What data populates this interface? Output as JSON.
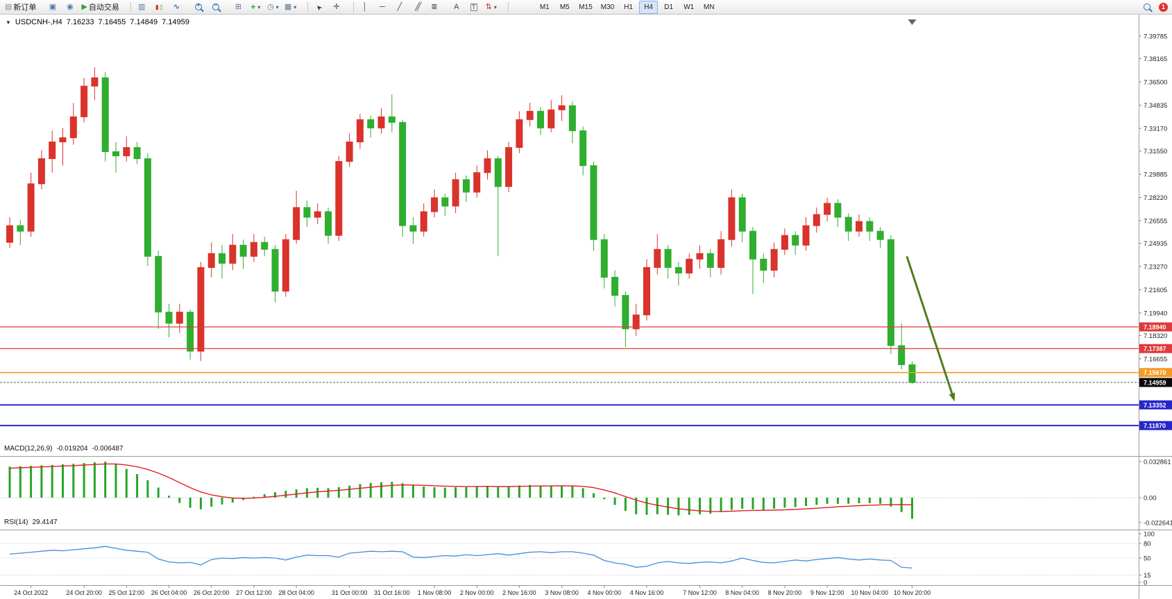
{
  "toolbar": {
    "new_order_label": "新订单",
    "autotrade_label": "自动交易",
    "timeframes": [
      "M1",
      "M5",
      "M15",
      "M30",
      "H1",
      "H4",
      "D1",
      "W1",
      "MN"
    ],
    "active_timeframe": "H4",
    "notification_count": "1"
  },
  "chart": {
    "title": {
      "symbol_period": "USDCNH-,H4",
      "open": "7.16233",
      "high": "7.16455",
      "low": "7.14849",
      "close": "7.14959"
    },
    "macd": {
      "label": "MACD(12,26,9)",
      "main_value": "-0.019204",
      "signal_value": "-0.006487"
    },
    "rsi": {
      "label": "RSI(14)",
      "value": "29.4147"
    }
  },
  "chart_data": [
    {
      "type": "candlestick",
      "title": "USDCNH-,H4",
      "bull_color": "#d9332b",
      "bear_color": "#2fae2f",
      "ylim": [
        7.0975,
        7.4103
      ],
      "y_axis_ticks": [
        "7.39785",
        "7.38165",
        "7.36500",
        "7.34835",
        "7.33170",
        "7.31550",
        "7.29885",
        "7.28220",
        "7.26555",
        "7.24935",
        "7.23270",
        "7.21605",
        "7.19940",
        "7.18320",
        "7.16655"
      ],
      "x_tick_labels": [
        "24 Oct 2022",
        "24 Oct 20:00",
        "25 Oct 12:00",
        "26 Oct 04:00",
        "26 Oct 20:00",
        "27 Oct 12:00",
        "28 Oct 04:00",
        "31 Oct 00:00",
        "31 Oct 16:00",
        "1 Nov 08:00",
        "2 Nov 00:00",
        "2 Nov 16:00",
        "3 Nov 08:00",
        "4 Nov 00:00",
        "4 Nov 16:00",
        "7 Nov 12:00",
        "8 Nov 04:00",
        "8 Nov 20:00",
        "9 Nov 12:00",
        "10 Nov 04:00",
        "10 Nov 20:00"
      ],
      "x_tick_indices": [
        2,
        7,
        11,
        15,
        19,
        23,
        27,
        32,
        36,
        40,
        44,
        48,
        52,
        56,
        60,
        65,
        69,
        73,
        77,
        81,
        85
      ],
      "ohlc": [
        [
          7.25,
          7.268,
          7.246,
          7.262
        ],
        [
          7.262,
          7.266,
          7.248,
          7.258
        ],
        [
          7.258,
          7.3,
          7.254,
          7.292
        ],
        [
          7.292,
          7.316,
          7.288,
          7.31
        ],
        [
          7.31,
          7.33,
          7.3,
          7.322
        ],
        [
          7.322,
          7.332,
          7.305,
          7.325
        ],
        [
          7.325,
          7.35,
          7.32,
          7.34
        ],
        [
          7.34,
          7.368,
          7.336,
          7.362
        ],
        [
          7.362,
          7.3755,
          7.352,
          7.368
        ],
        [
          7.368,
          7.372,
          7.308,
          7.315
        ],
        [
          7.315,
          7.322,
          7.3,
          7.312
        ],
        [
          7.312,
          7.326,
          7.308,
          7.318
        ],
        [
          7.318,
          7.322,
          7.306,
          7.31
        ],
        [
          7.31,
          7.314,
          7.233,
          7.24
        ],
        [
          7.24,
          7.244,
          7.188,
          7.2
        ],
        [
          7.2,
          7.206,
          7.182,
          7.192
        ],
        [
          7.192,
          7.206,
          7.185,
          7.2
        ],
        [
          7.2,
          7.202,
          7.166,
          7.172
        ],
        [
          7.172,
          7.236,
          7.165,
          7.232
        ],
        [
          7.232,
          7.25,
          7.225,
          7.242
        ],
        [
          7.242,
          7.248,
          7.224,
          7.235
        ],
        [
          7.235,
          7.256,
          7.23,
          7.248
        ],
        [
          7.248,
          7.252,
          7.231,
          7.24
        ],
        [
          7.24,
          7.256,
          7.236,
          7.25
        ],
        [
          7.25,
          7.254,
          7.24,
          7.245
        ],
        [
          7.245,
          7.248,
          7.207,
          7.215
        ],
        [
          7.215,
          7.256,
          7.211,
          7.252
        ],
        [
          7.252,
          7.287,
          7.249,
          7.275
        ],
        [
          7.275,
          7.28,
          7.261,
          7.268
        ],
        [
          7.268,
          7.278,
          7.263,
          7.272
        ],
        [
          7.272,
          7.275,
          7.249,
          7.255
        ],
        [
          7.255,
          7.312,
          7.251,
          7.308
        ],
        [
          7.308,
          7.328,
          7.304,
          7.322
        ],
        [
          7.322,
          7.342,
          7.317,
          7.338
        ],
        [
          7.338,
          7.341,
          7.325,
          7.332
        ],
        [
          7.332,
          7.346,
          7.328,
          7.34
        ],
        [
          7.34,
          7.356,
          7.329,
          7.336
        ],
        [
          7.336,
          7.338,
          7.254,
          7.262
        ],
        [
          7.262,
          7.268,
          7.249,
          7.258
        ],
        [
          7.258,
          7.278,
          7.254,
          7.272
        ],
        [
          7.272,
          7.288,
          7.268,
          7.282
        ],
        [
          7.282,
          7.285,
          7.269,
          7.276
        ],
        [
          7.276,
          7.3,
          7.271,
          7.295
        ],
        [
          7.295,
          7.298,
          7.279,
          7.286
        ],
        [
          7.286,
          7.305,
          7.282,
          7.3
        ],
        [
          7.3,
          7.316,
          7.295,
          7.31
        ],
        [
          7.31,
          7.312,
          7.24,
          7.29
        ],
        [
          7.29,
          7.322,
          7.286,
          7.318
        ],
        [
          7.318,
          7.344,
          7.314,
          7.338
        ],
        [
          7.338,
          7.35,
          7.333,
          7.344
        ],
        [
          7.344,
          7.347,
          7.327,
          7.332
        ],
        [
          7.332,
          7.352,
          7.329,
          7.345
        ],
        [
          7.345,
          7.3555,
          7.337,
          7.348
        ],
        [
          7.348,
          7.351,
          7.321,
          7.33
        ],
        [
          7.33,
          7.333,
          7.298,
          7.305
        ],
        [
          7.305,
          7.308,
          7.244,
          7.252
        ],
        [
          7.252,
          7.256,
          7.217,
          7.225
        ],
        [
          7.225,
          7.23,
          7.204,
          7.212
        ],
        [
          7.212,
          7.215,
          7.175,
          7.188
        ],
        [
          7.188,
          7.206,
          7.183,
          7.198
        ],
        [
          7.198,
          7.238,
          7.194,
          7.232
        ],
        [
          7.232,
          7.256,
          7.227,
          7.245
        ],
        [
          7.245,
          7.248,
          7.224,
          7.232
        ],
        [
          7.232,
          7.236,
          7.219,
          7.228
        ],
        [
          7.228,
          7.242,
          7.224,
          7.238
        ],
        [
          7.238,
          7.248,
          7.231,
          7.242
        ],
        [
          7.242,
          7.245,
          7.225,
          7.232
        ],
        [
          7.232,
          7.258,
          7.227,
          7.252
        ],
        [
          7.252,
          7.288,
          7.247,
          7.282
        ],
        [
          7.282,
          7.285,
          7.25,
          7.258
        ],
        [
          7.258,
          7.261,
          7.213,
          7.238
        ],
        [
          7.238,
          7.242,
          7.221,
          7.23
        ],
        [
          7.23,
          7.25,
          7.225,
          7.245
        ],
        [
          7.245,
          7.26,
          7.241,
          7.255
        ],
        [
          7.255,
          7.258,
          7.241,
          7.248
        ],
        [
          7.248,
          7.268,
          7.244,
          7.262
        ],
        [
          7.262,
          7.275,
          7.257,
          7.27
        ],
        [
          7.27,
          7.282,
          7.265,
          7.278
        ],
        [
          7.278,
          7.281,
          7.261,
          7.268
        ],
        [
          7.268,
          7.271,
          7.251,
          7.258
        ],
        [
          7.258,
          7.27,
          7.254,
          7.265
        ],
        [
          7.265,
          7.268,
          7.251,
          7.258
        ],
        [
          7.258,
          7.261,
          7.246,
          7.252
        ],
        [
          7.252,
          7.255,
          7.17,
          7.176
        ],
        [
          7.176,
          7.192,
          7.159,
          7.16233
        ],
        [
          7.16233,
          7.16455,
          7.14849,
          7.14959
        ]
      ],
      "horizontal_lines": [
        {
          "price": 7.1894,
          "label": "7.18940",
          "color": "#e03a3a",
          "width": 1.2
        },
        {
          "price": 7.17387,
          "label": "7.17387",
          "color": "#e03a3a",
          "width": 1.2
        },
        {
          "price": 7.1567,
          "label": "7.15670",
          "color": "#f59a23",
          "width": 1.6
        },
        {
          "price": 7.13352,
          "label": "7.13352",
          "color": "#2626cc",
          "width": 2
        },
        {
          "price": 7.1187,
          "label": "7.11870",
          "color": "#2626cc",
          "width": 2
        }
      ],
      "current_price": {
        "value": 7.14959,
        "label": "7.14959",
        "tag_color": "#0a0a0a"
      },
      "annotation_arrow": {
        "x1_index": 84.5,
        "price1": 7.24,
        "x2_index": 89.0,
        "price2": 7.136,
        "color": "#4e7d1f",
        "width": 3
      },
      "shift_marker_index": 85
    },
    {
      "type": "bar",
      "name": "MACD(12,26,9)",
      "bar_color": "#27a527",
      "signal_color": "#e02020",
      "ylim": [
        -0.0265,
        0.0355
      ],
      "axis_ticks": [
        "0.032861",
        "0.00",
        "-0.022641"
      ],
      "axis_tick_values": [
        0.032861,
        0,
        -0.022641
      ],
      "last_main": "-0.019204",
      "last_signal": "-0.006487",
      "values": [
        0.0282,
        0.0286,
        0.029,
        0.0294,
        0.0298,
        0.0303,
        0.0308,
        0.0315,
        0.0322,
        0.0328,
        0.0305,
        0.0262,
        0.0215,
        0.016,
        0.0092,
        0.0018,
        -0.0048,
        -0.0092,
        -0.0106,
        -0.0082,
        -0.0062,
        -0.0045,
        -0.0022,
        0.0008,
        0.0032,
        0.005,
        0.0062,
        0.0076,
        0.0086,
        0.009,
        0.0086,
        0.0096,
        0.011,
        0.0124,
        0.0134,
        0.014,
        0.0145,
        0.0131,
        0.0112,
        0.0101,
        0.0095,
        0.0091,
        0.0095,
        0.0096,
        0.0101,
        0.0106,
        0.0096,
        0.0101,
        0.0111,
        0.0116,
        0.0111,
        0.0111,
        0.011,
        0.0106,
        0.0086,
        0.0041,
        -0.0014,
        -0.0066,
        -0.0121,
        -0.0151,
        -0.0156,
        -0.0151,
        -0.0156,
        -0.0161,
        -0.0156,
        -0.0151,
        -0.0146,
        -0.0131,
        -0.0111,
        -0.0101,
        -0.0106,
        -0.0111,
        -0.0101,
        -0.0091,
        -0.0086,
        -0.0076,
        -0.0066,
        -0.0056,
        -0.0056,
        -0.0055,
        -0.0051,
        -0.005,
        -0.0056,
        -0.0081,
        -0.0131,
        -0.0192
      ],
      "signal": [
        0.0268,
        0.0272,
        0.0276,
        0.028,
        0.0284,
        0.0288,
        0.0292,
        0.0297,
        0.0302,
        0.0307,
        0.0307,
        0.0298,
        0.0281,
        0.0257,
        0.0224,
        0.0183,
        0.0137,
        0.0091,
        0.0052,
        0.0025,
        0.0008,
        -0.0003,
        -0.0007,
        -0.0004,
        0.0003,
        0.0012,
        0.0022,
        0.0033,
        0.0044,
        0.0053,
        0.006,
        0.0067,
        0.0076,
        0.0086,
        0.0095,
        0.0104,
        0.0112,
        0.0116,
        0.0115,
        0.0112,
        0.0109,
        0.0105,
        0.0103,
        0.0102,
        0.0102,
        0.0103,
        0.0101,
        0.0101,
        0.0103,
        0.0105,
        0.0106,
        0.0107,
        0.0108,
        0.0107,
        0.0103,
        0.0091,
        0.007,
        0.0043,
        0.001,
        -0.0022,
        -0.0049,
        -0.0069,
        -0.0086,
        -0.0101,
        -0.0112,
        -0.012,
        -0.0125,
        -0.0126,
        -0.0123,
        -0.0119,
        -0.0116,
        -0.0115,
        -0.0114,
        -0.0111,
        -0.0107,
        -0.0102,
        -0.0096,
        -0.009,
        -0.0083,
        -0.0078,
        -0.0073,
        -0.0069,
        -0.0066,
        -0.0064,
        -0.0063,
        -0.0065
      ]
    },
    {
      "type": "line",
      "name": "RSI(14)",
      "line_color": "#3f8edb",
      "ylim": [
        0,
        100
      ],
      "levels": [
        80,
        50,
        15
      ],
      "axis_ticks": [
        "100",
        "80",
        "50",
        "15",
        "0"
      ],
      "axis_tick_values": [
        100,
        80,
        50,
        15,
        0
      ],
      "last_value": "29.4147",
      "values": [
        58,
        60,
        62,
        64,
        66,
        65,
        67,
        69,
        71,
        74,
        70,
        66,
        64,
        62,
        48,
        42,
        40,
        41,
        36,
        47,
        50,
        49,
        51,
        50,
        51,
        50,
        46,
        52,
        56,
        55,
        55,
        52,
        60,
        62,
        64,
        63,
        64,
        63,
        52,
        51,
        53,
        55,
        54,
        57,
        55,
        57,
        59,
        56,
        59,
        62,
        63,
        61,
        63,
        63,
        60,
        56,
        45,
        40,
        37,
        31,
        33,
        40,
        43,
        40,
        39,
        41,
        42,
        40,
        44,
        50,
        45,
        41,
        40,
        43,
        46,
        44,
        47,
        49,
        51,
        48,
        46,
        48,
        46,
        45,
        31,
        29.4
      ]
    }
  ]
}
